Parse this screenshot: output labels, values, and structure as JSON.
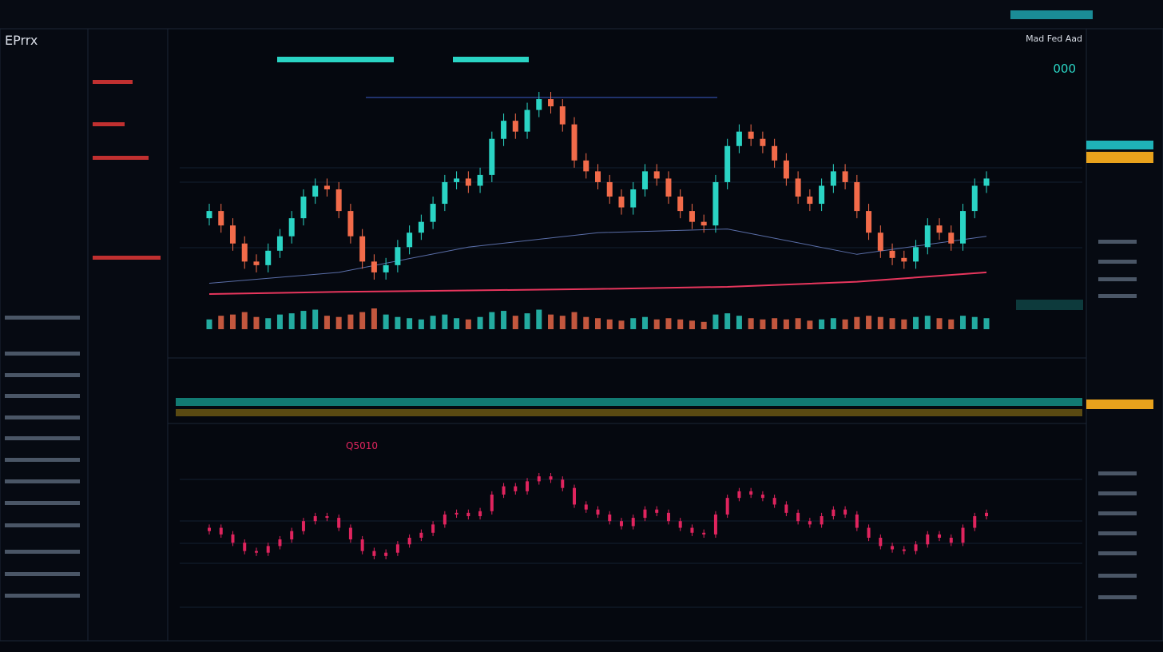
{
  "header": {
    "title": "EPrrx",
    "chart_label": "Mad Fed Aad",
    "right_value": "000",
    "lower_label": "Q5010"
  },
  "chart": {
    "type": "candlestick",
    "up_color": "#2ad4c4",
    "down_color": "#f26b4a",
    "open": [
      120,
      130,
      110,
      85,
      60,
      55,
      75,
      95,
      120,
      150,
      165,
      160,
      130,
      95,
      60,
      45,
      55,
      80,
      100,
      115,
      140,
      170,
      175,
      165,
      180,
      230,
      255,
      240,
      270,
      285,
      275,
      250,
      200,
      185,
      170,
      150,
      135,
      160,
      185,
      175,
      150,
      130,
      115,
      110,
      170,
      220,
      240,
      230,
      220,
      200,
      175,
      150,
      140,
      165,
      185,
      170,
      130,
      100,
      75,
      65,
      60,
      80,
      110,
      100,
      85,
      130,
      165
    ],
    "high": [
      140,
      140,
      120,
      95,
      70,
      85,
      105,
      130,
      160,
      175,
      175,
      170,
      140,
      105,
      70,
      65,
      90,
      110,
      125,
      150,
      180,
      185,
      185,
      190,
      240,
      265,
      265,
      280,
      295,
      295,
      285,
      260,
      210,
      195,
      180,
      160,
      170,
      195,
      195,
      185,
      160,
      140,
      125,
      180,
      230,
      250,
      250,
      240,
      230,
      210,
      185,
      160,
      175,
      195,
      195,
      180,
      140,
      110,
      85,
      75,
      90,
      120,
      120,
      110,
      140,
      175,
      185
    ],
    "low": [
      110,
      100,
      75,
      50,
      45,
      45,
      65,
      85,
      110,
      140,
      150,
      120,
      85,
      50,
      35,
      35,
      45,
      70,
      90,
      105,
      130,
      160,
      155,
      155,
      170,
      220,
      230,
      230,
      260,
      265,
      240,
      190,
      175,
      160,
      140,
      125,
      125,
      150,
      165,
      140,
      120,
      105,
      100,
      100,
      160,
      210,
      220,
      210,
      190,
      165,
      140,
      130,
      130,
      155,
      160,
      120,
      90,
      65,
      55,
      50,
      50,
      70,
      90,
      75,
      75,
      120,
      155
    ],
    "close": [
      130,
      110,
      85,
      60,
      55,
      75,
      95,
      120,
      150,
      165,
      160,
      130,
      95,
      60,
      45,
      55,
      80,
      100,
      115,
      140,
      170,
      175,
      165,
      180,
      230,
      255,
      240,
      270,
      285,
      275,
      250,
      200,
      185,
      170,
      150,
      135,
      160,
      185,
      175,
      150,
      130,
      115,
      110,
      170,
      220,
      240,
      230,
      220,
      200,
      175,
      150,
      140,
      165,
      185,
      170,
      130,
      100,
      75,
      65,
      60,
      80,
      110,
      100,
      85,
      130,
      165,
      175
    ],
    "volume": [
      40,
      55,
      60,
      70,
      50,
      45,
      60,
      65,
      75,
      80,
      55,
      50,
      60,
      70,
      85,
      60,
      50,
      45,
      40,
      55,
      60,
      45,
      40,
      50,
      70,
      75,
      55,
      65,
      80,
      60,
      55,
      70,
      50,
      45,
      40,
      35,
      45,
      50,
      40,
      45,
      40,
      35,
      30,
      60,
      65,
      55,
      45,
      40,
      45,
      40,
      45,
      35,
      40,
      45,
      40,
      50,
      55,
      50,
      45,
      40,
      50,
      55,
      45,
      40,
      55,
      50,
      45
    ],
    "averages": [
      {
        "color": "#e8365d",
        "index": [
          0,
          11,
          22,
          33,
          44,
          55,
          66
        ],
        "values": [
          15,
          18,
          20,
          22,
          25,
          32,
          45
        ]
      },
      {
        "color": "#5a6ea8",
        "index": [
          0,
          11,
          22,
          33,
          44,
          55,
          66
        ],
        "values": [
          30,
          45,
          80,
          100,
          105,
          70,
          95
        ]
      }
    ],
    "lower_color": "#e0245e"
  }
}
